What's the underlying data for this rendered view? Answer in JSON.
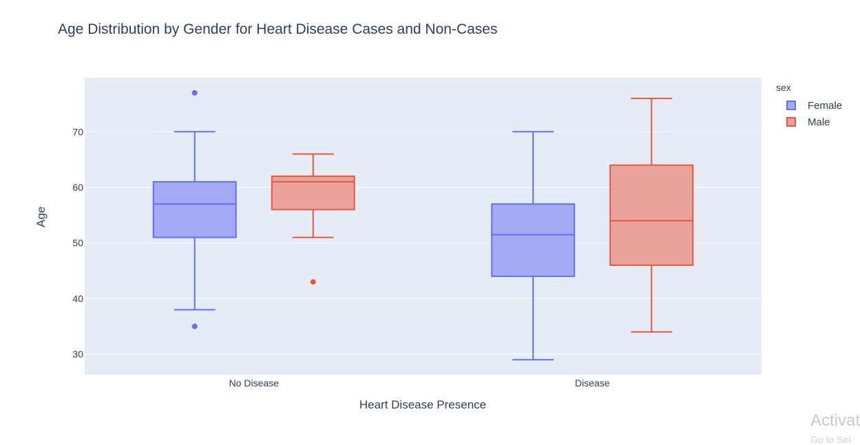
{
  "chart_data": {
    "type": "box",
    "title": "Age Distribution by Gender for Heart Disease Cases and Non-Cases",
    "xlabel": "Heart Disease Presence",
    "ylabel": "Age",
    "categories": [
      "No Disease",
      "Disease"
    ],
    "y_ticks": [
      30,
      40,
      50,
      60,
      70
    ],
    "ylim": [
      26.3,
      79.7
    ],
    "grid": true,
    "legend": {
      "title": "sex",
      "placement": "right"
    },
    "series": [
      {
        "name": "Female",
        "color": "#636efa",
        "fill": "#a3a9f5",
        "boxes": [
          {
            "category": "No Disease",
            "min": 38,
            "q1": 51,
            "median": 57,
            "q3": 61,
            "max": 70,
            "outliers": [
              77,
              35
            ]
          },
          {
            "category": "Disease",
            "min": 29,
            "q1": 44,
            "median": 51.5,
            "q3": 57,
            "max": 70,
            "outliers": []
          }
        ]
      },
      {
        "name": "Male",
        "color": "#ef553b",
        "fill": "#e9a39c",
        "boxes": [
          {
            "category": "No Disease",
            "min": 51,
            "q1": 56,
            "median": 61,
            "q3": 62,
            "max": 66,
            "outliers": [
              43
            ]
          },
          {
            "category": "Disease",
            "min": 34,
            "q1": 46,
            "median": 54,
            "q3": 64,
            "max": 76,
            "outliers": []
          }
        ]
      }
    ]
  },
  "overlay": {
    "watermark": "Activat",
    "watermark_sub": "Go to Set"
  }
}
